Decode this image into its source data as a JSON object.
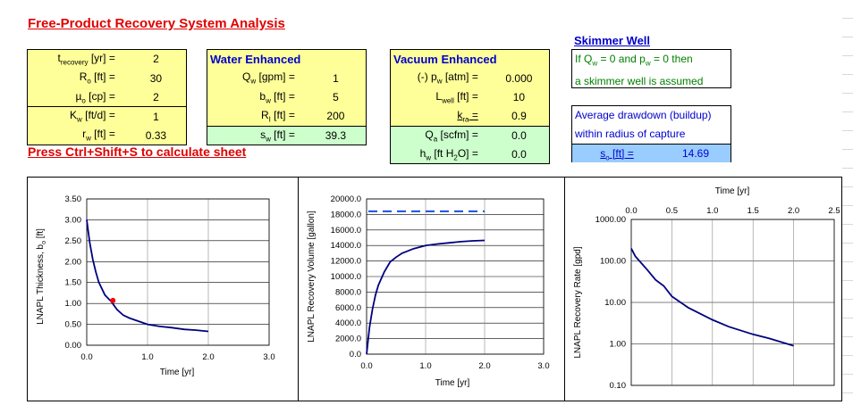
{
  "title": "Free-Product Recovery System Analysis",
  "command": "Press Ctrl+Shift+S to calculate sheet",
  "block1": {
    "rows": [
      {
        "label": "t",
        "sub": "recovery",
        "post": " [yr] =",
        "value": "2"
      },
      {
        "label": "R",
        "sub": "o",
        "post": " [ft] =",
        "value": "30"
      },
      {
        "label": "µ",
        "sub": "o",
        "post": " [cp] =",
        "value": "2"
      },
      {
        "label": "K",
        "sub": "w",
        "post": " [ft/d] =",
        "value": "1"
      },
      {
        "label": "r",
        "sub": "w",
        "post": " [ft] =",
        "value": "0.33"
      }
    ]
  },
  "water": {
    "header": "Water Enhanced",
    "rows": [
      {
        "label": "Q",
        "sub": "w",
        "post": " [gpm] =",
        "value": "1"
      },
      {
        "label": "b",
        "sub": "w",
        "post": " [ft] =",
        "value": "5"
      },
      {
        "label": "R",
        "sub": "I",
        "post": " [ft] =",
        "value": "200"
      },
      {
        "label": "s",
        "sub": "w",
        "post": " [ft] =",
        "value": "39.3"
      }
    ]
  },
  "vacuum": {
    "header": "Vacuum Enhanced",
    "rows": [
      {
        "label": "(-) p",
        "sub": "w",
        "post": " [atm] =",
        "value": "0.000"
      },
      {
        "label": "L",
        "sub": "well",
        "post": " [ft] =",
        "value": "10"
      },
      {
        "label": "k",
        "sub": "ra",
        "post": " =",
        "value": "0.9"
      },
      {
        "label": "Q",
        "sub": "a",
        "post": " [scfm] =",
        "value": "0.0"
      },
      {
        "label": "h",
        "sub": "w",
        "post": " [ft H",
        "post2": "2",
        "post3": "O] =",
        "value": "0.0"
      }
    ]
  },
  "skimmer": {
    "title": "Skimmer Well",
    "line1": "If Q",
    "line1_sub1": "w",
    "line1_mid": " = 0 and p",
    "line1_sub2": "w",
    "line1_end": " = 0 then",
    "line2": "a skimmer well is assumed",
    "avg1": "Average drawdown (buildup)",
    "avg2": "within radius of capture",
    "so_label": "s",
    "so_sub": "o",
    "so_post": " [ft] =",
    "so_value": "14.69"
  },
  "charts": {
    "c1": {
      "ylabel_pre": "LNAPL Thickness, b",
      "ylabel_sub": "o",
      "ylabel_post": " [ft]",
      "xlabel": "Time [yr]"
    },
    "c2": {
      "ylabel": "LNAPL Recovery Volume [gallon]",
      "xlabel": "Time [yr]"
    },
    "c3": {
      "ylabel": "LNAPL Recovery Rate [gpd]",
      "xlabel": "Time [yr]"
    }
  },
  "chart_data": [
    {
      "type": "line",
      "xlabel": "Time [yr]",
      "ylabel": "LNAPL Thickness, bo [ft]",
      "xlim": [
        0,
        3
      ],
      "ylim": [
        0,
        3.5
      ],
      "xticks": [
        "0.0",
        "1.0",
        "2.0",
        "3.0"
      ],
      "yticks": [
        "0.00",
        "0.50",
        "1.00",
        "1.50",
        "2.00",
        "2.50",
        "3.00",
        "3.50"
      ],
      "x": [
        0.0,
        0.05,
        0.1,
        0.15,
        0.2,
        0.3,
        0.4,
        0.5,
        0.6,
        0.7,
        0.8,
        1.0,
        1.2,
        1.4,
        1.6,
        1.8,
        2.0
      ],
      "y": [
        3.0,
        2.45,
        2.05,
        1.75,
        1.5,
        1.2,
        1.05,
        0.85,
        0.72,
        0.65,
        0.6,
        0.5,
        0.45,
        0.42,
        0.38,
        0.36,
        0.33
      ],
      "marker": {
        "x": 0.43,
        "y": 1.07,
        "color": "#ff0000"
      },
      "grid": true
    },
    {
      "type": "line",
      "xlabel": "Time [yr]",
      "ylabel": "LNAPL Recovery Volume [gallon]",
      "xlim": [
        0,
        3
      ],
      "ylim": [
        0,
        20000
      ],
      "xticks": [
        "0.0",
        "1.0",
        "2.0",
        "3.0"
      ],
      "yticks": [
        "0.0",
        "2000.0",
        "4000.0",
        "6000.0",
        "8000.0",
        "10000.0",
        "12000.0",
        "14000.0",
        "16000.0",
        "18000.0",
        "20000.0"
      ],
      "x": [
        0.0,
        0.05,
        0.1,
        0.15,
        0.2,
        0.3,
        0.4,
        0.5,
        0.6,
        0.8,
        1.0,
        1.2,
        1.4,
        1.6,
        1.8,
        2.0
      ],
      "y": [
        0,
        3500,
        5800,
        7600,
        8900,
        10600,
        11900,
        12500,
        13000,
        13600,
        14000,
        14200,
        14350,
        14500,
        14600,
        14650
      ],
      "reference_line": {
        "y": 18400,
        "style": "dashed"
      },
      "grid": true
    },
    {
      "type": "line",
      "xlabel": "Time [yr]",
      "ylabel": "LNAPL Recovery Rate [gpd]",
      "xlim": [
        0,
        2.5
      ],
      "ylim": [
        0.1,
        1000
      ],
      "yscale": "log",
      "xticks": [
        "0.0",
        "0.5",
        "1.0",
        "1.5",
        "2.0",
        "2.5"
      ],
      "yticks": [
        "0.10",
        "1.00",
        "10.00",
        "100.00",
        "1000.00"
      ],
      "x": [
        0.0,
        0.05,
        0.1,
        0.2,
        0.3,
        0.4,
        0.5,
        0.7,
        1.0,
        1.2,
        1.5,
        1.7,
        2.0
      ],
      "y": [
        200,
        130,
        100,
        60,
        35,
        25,
        14,
        7.5,
        3.8,
        2.6,
        1.7,
        1.35,
        0.9
      ],
      "grid": true
    }
  ],
  "colors": {
    "yellow": "#ffff99",
    "green": "#ccffcc",
    "blue": "#99ccff",
    "line": "#000080",
    "accent": "#e00000"
  }
}
